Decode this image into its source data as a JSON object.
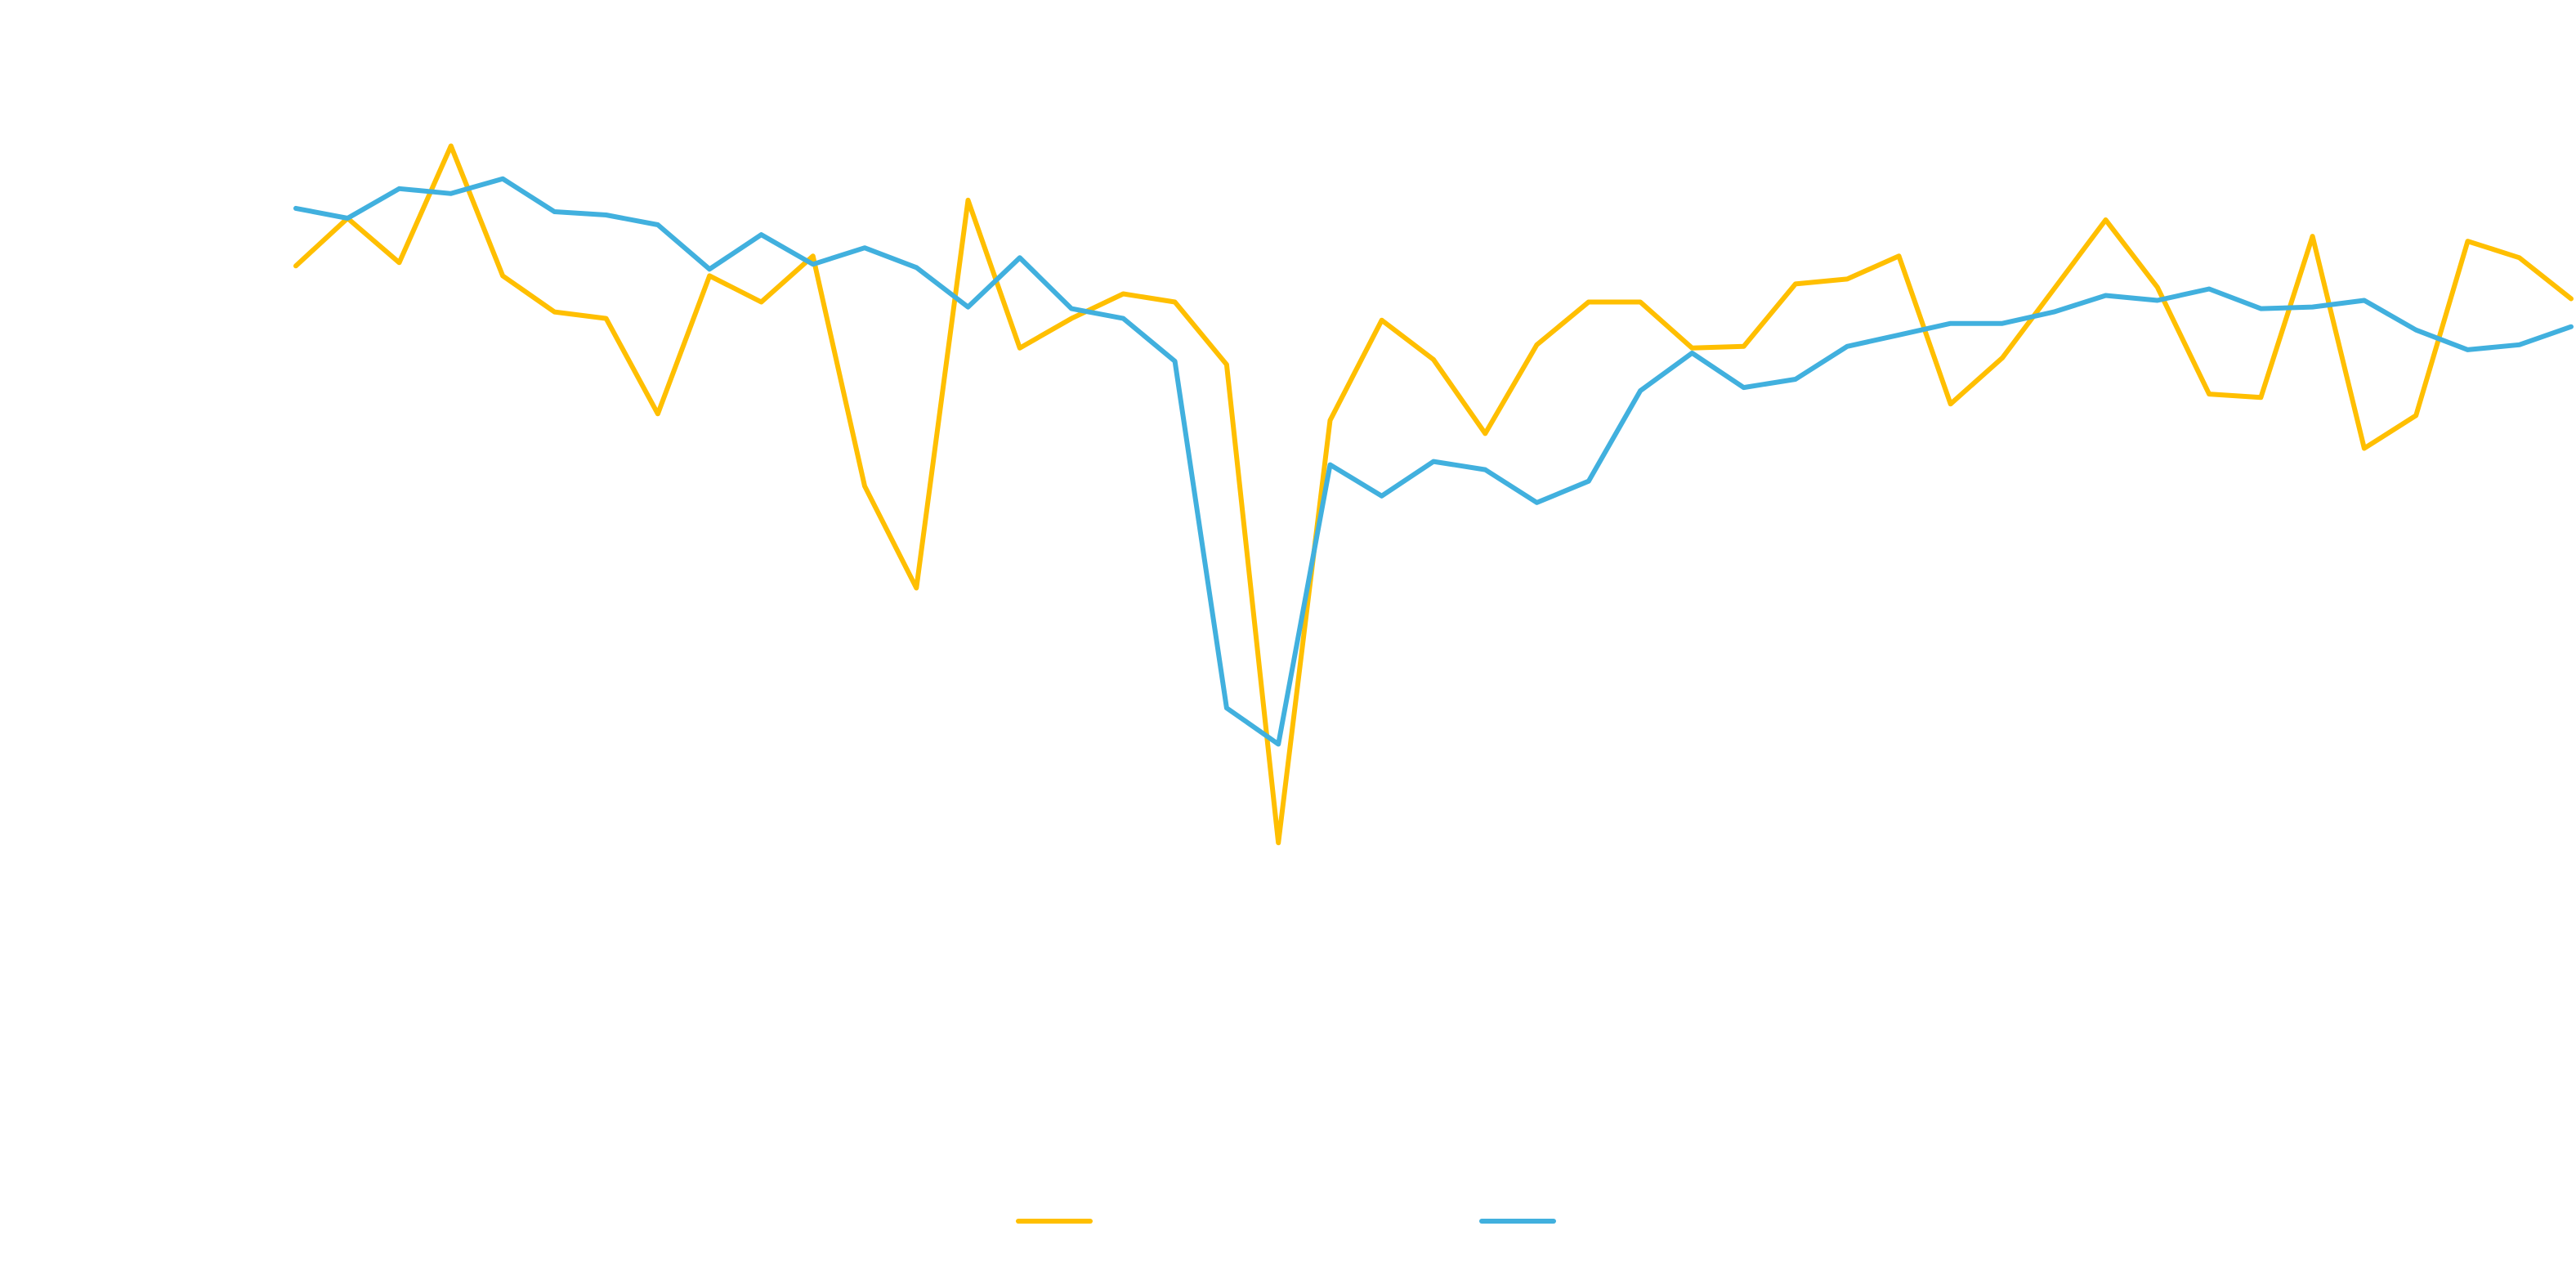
{
  "chart_data": {
    "type": "line",
    "ylim": [
      0,
      112
    ],
    "series": [
      {
        "color": "#ffbf00",
        "values": [
          87.6,
          93.4,
          88,
          102.2,
          86.4,
          82,
          81.2,
          69.6,
          86.4,
          83.2,
          88.8,
          60.8,
          48.4,
          95.6,
          77.6,
          81.2,
          84.2,
          83.2,
          75.6,
          17.4,
          68.8,
          81,
          76.2,
          67.2,
          78,
          83.2,
          83.2,
          77.6,
          77.8,
          85.4,
          86,
          88.8,
          70.8,
          76.4,
          84.8,
          93.2,
          85,
          72,
          71.6,
          91.2,
          65.4,
          69.4,
          90.6,
          88.6,
          83.6
        ]
      },
      {
        "color": "#41b0de",
        "values": [
          94.6,
          93.4,
          97,
          96.4,
          98.2,
          94.2,
          93.8,
          92.6,
          87.2,
          91.4,
          87.8,
          89.8,
          87.4,
          82.6,
          88.6,
          82.4,
          81.2,
          76,
          33.8,
          29.4,
          63.4,
          59.6,
          63.8,
          62.8,
          58.8,
          61.4,
          72.4,
          77,
          72.8,
          73.8,
          77.8,
          79.2,
          80.6,
          80.6,
          82,
          84,
          83.4,
          84.8,
          82.4,
          82.6,
          83.4,
          79.8,
          77.4,
          78,
          80.2
        ]
      }
    ]
  }
}
